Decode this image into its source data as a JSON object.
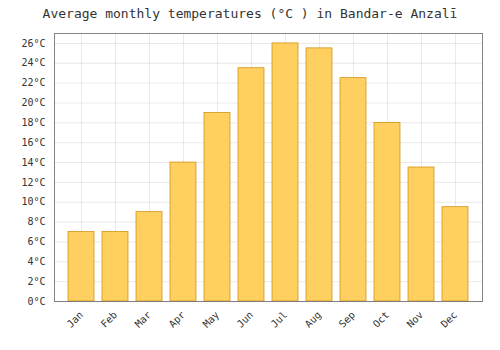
{
  "chart_data": {
    "type": "bar",
    "title": "Average monthly temperatures (°C ) in Bandar-e Anzalī",
    "categories": [
      "Jan",
      "Feb",
      "Mar",
      "Apr",
      "May",
      "Jun",
      "Jul",
      "Aug",
      "Sep",
      "Oct",
      "Nov",
      "Dec"
    ],
    "values": [
      7.0,
      7.0,
      9.0,
      14.0,
      19.0,
      23.5,
      26.0,
      25.5,
      22.5,
      18.0,
      13.5,
      9.5
    ],
    "color": "#FFD060",
    "ylim": [
      0,
      27
    ],
    "yticks": [
      {
        "value": 0,
        "label": "0°C"
      },
      {
        "value": 2,
        "label": "2°C"
      },
      {
        "value": 4,
        "label": "4°C"
      },
      {
        "value": 6,
        "label": "6°C"
      },
      {
        "value": 8,
        "label": "8°C"
      },
      {
        "value": 10,
        "label": "10°C"
      },
      {
        "value": 12,
        "label": "12°C"
      },
      {
        "value": 14,
        "label": "14°C"
      },
      {
        "value": 16,
        "label": "16°C"
      },
      {
        "value": 18,
        "label": "18°C"
      },
      {
        "value": 20,
        "label": "20°C"
      },
      {
        "value": 22,
        "label": "22°C"
      },
      {
        "value": 24,
        "label": "24°C"
      },
      {
        "value": 26,
        "label": "26°C"
      }
    ],
    "grid": true
  }
}
